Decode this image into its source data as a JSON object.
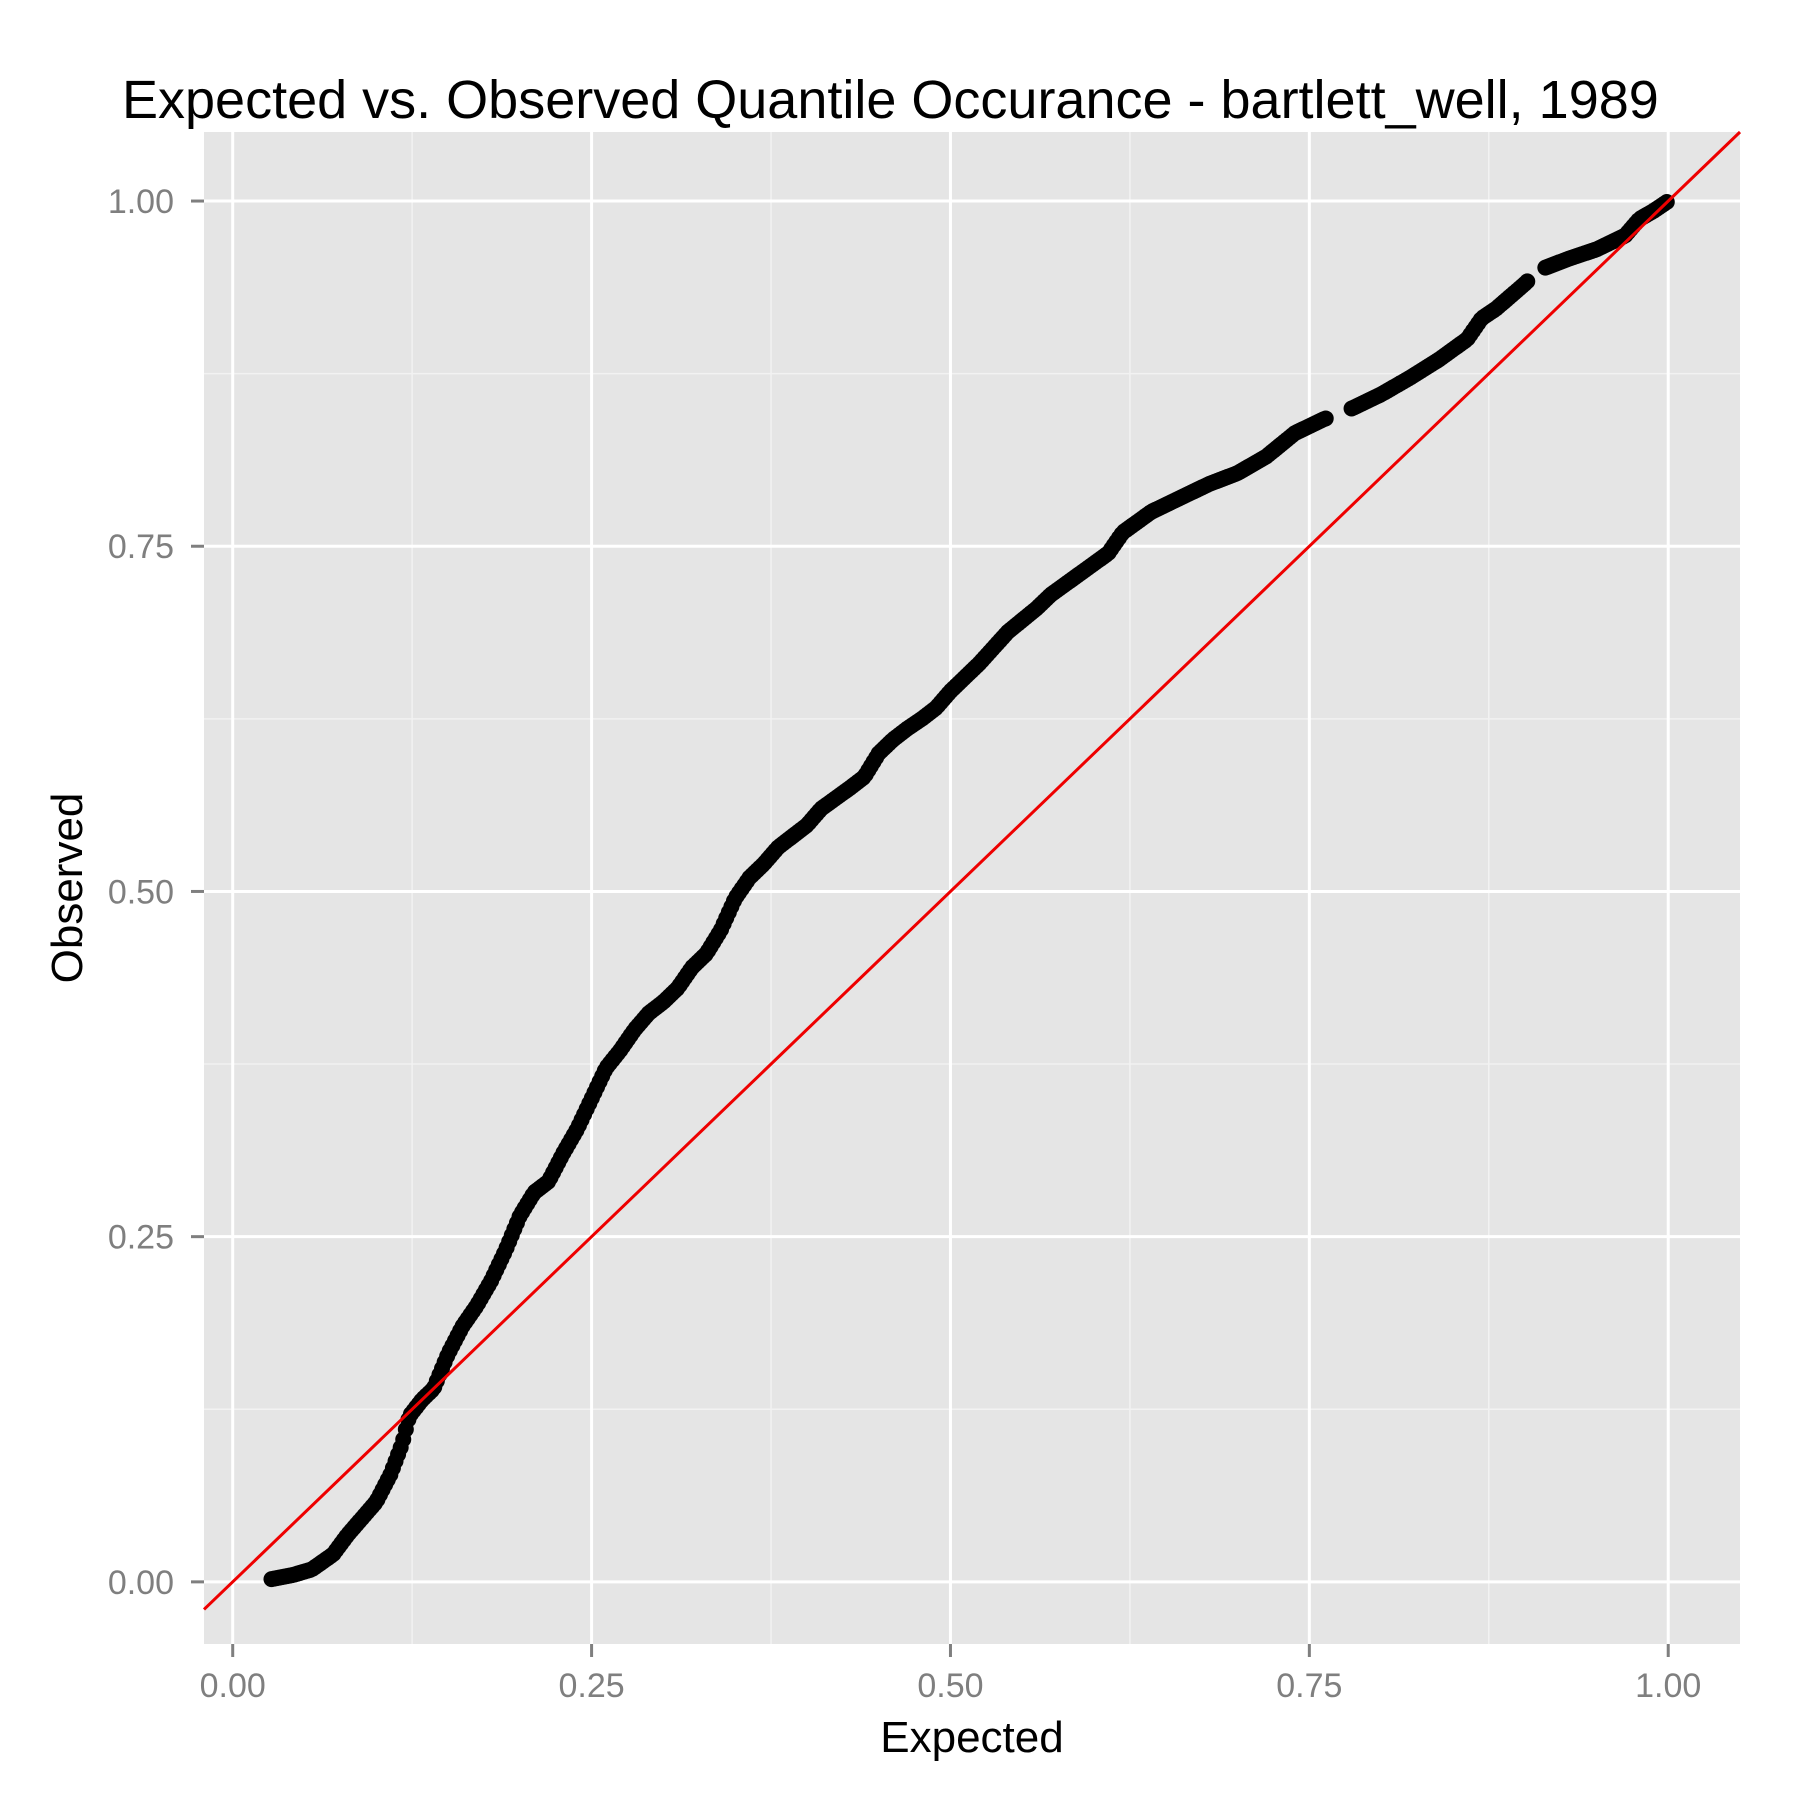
{
  "chart_data": {
    "type": "scatter",
    "title": "Expected vs. Observed Quantile Occurance - bartlett_well, 1989",
    "xlabel": "Expected",
    "ylabel": "Observed",
    "xlim": [
      -0.02,
      1.05
    ],
    "ylim": [
      -0.045,
      1.05
    ],
    "xticks": [
      0.0,
      0.25,
      0.5,
      0.75,
      1.0
    ],
    "xtick_labels": [
      "0.00",
      "0.25",
      "0.50",
      "0.75",
      "1.00"
    ],
    "yticks": [
      0.0,
      0.25,
      0.5,
      0.75,
      1.0
    ],
    "ytick_labels": [
      "0.00",
      "0.25",
      "0.50",
      "0.75",
      "1.00"
    ],
    "grid": true,
    "legend": "none",
    "colors": {
      "panel_background": "#e5e5e5",
      "grid": "#ffffff",
      "points": "#000000",
      "reference_line": "#ee0000",
      "tick_label": "#7f7f7f"
    },
    "reference_line": {
      "intercept": 0,
      "slope": 1
    },
    "curve_points": [
      [
        0.027,
        0.002
      ],
      [
        0.042,
        0.005
      ],
      [
        0.055,
        0.009
      ],
      [
        0.07,
        0.02
      ],
      [
        0.08,
        0.034
      ],
      [
        0.09,
        0.046
      ],
      [
        0.1,
        0.058
      ],
      [
        0.11,
        0.078
      ],
      [
        0.118,
        0.1
      ],
      [
        0.123,
        0.12
      ],
      [
        0.132,
        0.132
      ],
      [
        0.14,
        0.14
      ],
      [
        0.15,
        0.165
      ],
      [
        0.16,
        0.185
      ],
      [
        0.17,
        0.2
      ],
      [
        0.18,
        0.218
      ],
      [
        0.19,
        0.24
      ],
      [
        0.2,
        0.265
      ],
      [
        0.21,
        0.282
      ],
      [
        0.22,
        0.29
      ],
      [
        0.23,
        0.31
      ],
      [
        0.24,
        0.328
      ],
      [
        0.25,
        0.35
      ],
      [
        0.26,
        0.372
      ],
      [
        0.27,
        0.385
      ],
      [
        0.28,
        0.4
      ],
      [
        0.29,
        0.412
      ],
      [
        0.3,
        0.42
      ],
      [
        0.31,
        0.43
      ],
      [
        0.32,
        0.445
      ],
      [
        0.33,
        0.455
      ],
      [
        0.34,
        0.472
      ],
      [
        0.35,
        0.495
      ],
      [
        0.36,
        0.51
      ],
      [
        0.37,
        0.52
      ],
      [
        0.38,
        0.532
      ],
      [
        0.39,
        0.54
      ],
      [
        0.4,
        0.548
      ],
      [
        0.41,
        0.56
      ],
      [
        0.43,
        0.575
      ],
      [
        0.44,
        0.583
      ],
      [
        0.45,
        0.6
      ],
      [
        0.46,
        0.61
      ],
      [
        0.47,
        0.618
      ],
      [
        0.48,
        0.625
      ],
      [
        0.49,
        0.633
      ],
      [
        0.5,
        0.645
      ],
      [
        0.51,
        0.655
      ],
      [
        0.52,
        0.665
      ],
      [
        0.54,
        0.688
      ],
      [
        0.56,
        0.705
      ],
      [
        0.57,
        0.715
      ],
      [
        0.59,
        0.73
      ],
      [
        0.61,
        0.745
      ],
      [
        0.62,
        0.76
      ],
      [
        0.64,
        0.775
      ],
      [
        0.66,
        0.785
      ],
      [
        0.68,
        0.795
      ],
      [
        0.7,
        0.803
      ],
      [
        0.72,
        0.815
      ],
      [
        0.74,
        0.832
      ],
      [
        0.76,
        0.842
      ],
      [
        0.78,
        0.85
      ],
      [
        0.8,
        0.86
      ],
      [
        0.82,
        0.872
      ],
      [
        0.84,
        0.885
      ],
      [
        0.86,
        0.9
      ],
      [
        0.87,
        0.915
      ],
      [
        0.88,
        0.922
      ],
      [
        0.9,
        0.94
      ],
      [
        0.91,
        0.95
      ],
      [
        0.93,
        0.958
      ],
      [
        0.95,
        0.965
      ],
      [
        0.97,
        0.975
      ],
      [
        0.98,
        0.987
      ],
      [
        0.99,
        0.993
      ],
      [
        1.0,
        1.0
      ]
    ],
    "gap_ranges": [
      [
        0.762,
        0.778
      ],
      [
        0.903,
        0.913
      ]
    ]
  }
}
